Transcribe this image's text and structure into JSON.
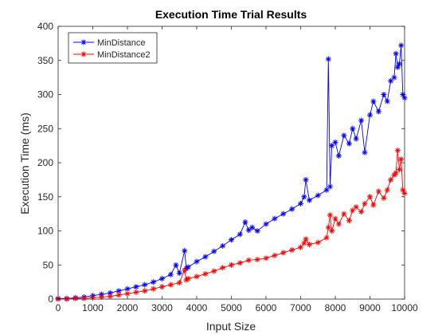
{
  "chart_data": {
    "type": "line",
    "title": "Execution Time Trial Results",
    "xlabel": "Input Size",
    "ylabel": "Execution Time (ms)",
    "xlim": [
      0,
      10000
    ],
    "ylim": [
      0,
      400
    ],
    "xticks": [
      0,
      1000,
      2000,
      3000,
      4000,
      5000,
      6000,
      7000,
      8000,
      9000,
      10000
    ],
    "yticks": [
      0,
      50,
      100,
      150,
      200,
      250,
      300,
      350,
      400
    ],
    "grid": false,
    "legend_position": "top-left",
    "series": [
      {
        "name": "MinDistance",
        "color": "#0000ff",
        "marker": "asterisk",
        "x": [
          0,
          250,
          500,
          750,
          1000,
          1250,
          1500,
          1750,
          2000,
          2250,
          2500,
          2750,
          3000,
          3250,
          3400,
          3500,
          3650,
          3700,
          3750,
          4000,
          4250,
          4500,
          4750,
          5000,
          5250,
          5400,
          5500,
          5600,
          5750,
          6000,
          6250,
          6500,
          6750,
          7000,
          7100,
          7150,
          7250,
          7500,
          7750,
          7800,
          7850,
          7900,
          8000,
          8100,
          8250,
          8400,
          8500,
          8600,
          8750,
          8850,
          9000,
          9100,
          9250,
          9400,
          9500,
          9600,
          9700,
          9750,
          9800,
          9850,
          9900,
          9950,
          10000
        ],
        "y": [
          1,
          1,
          2,
          3,
          5,
          7,
          9,
          12,
          15,
          18,
          21,
          25,
          30,
          36,
          50,
          38,
          71,
          45,
          47,
          55,
          62,
          70,
          78,
          87,
          95,
          113,
          101,
          105,
          100,
          110,
          118,
          125,
          132,
          140,
          150,
          175,
          145,
          152,
          160,
          352,
          165,
          225,
          230,
          210,
          240,
          228,
          250,
          235,
          262,
          215,
          270,
          290,
          275,
          300,
          290,
          320,
          325,
          360,
          340,
          345,
          372,
          300,
          295
        ]
      },
      {
        "name": "MinDistance2",
        "color": "#ff0000",
        "marker": "asterisk",
        "x": [
          0,
          250,
          500,
          750,
          1000,
          1250,
          1500,
          1750,
          2000,
          2250,
          2500,
          2750,
          3000,
          3250,
          3500,
          3650,
          3700,
          3750,
          4000,
          4250,
          4500,
          4750,
          5000,
          5250,
          5500,
          5750,
          6000,
          6250,
          6500,
          6750,
          7000,
          7100,
          7150,
          7250,
          7500,
          7750,
          7800,
          7850,
          7900,
          8000,
          8100,
          8250,
          8400,
          8500,
          8600,
          8750,
          8850,
          9000,
          9100,
          9250,
          9400,
          9500,
          9600,
          9700,
          9750,
          9800,
          9850,
          9900,
          9950,
          10000
        ],
        "y": [
          0,
          0,
          1,
          1,
          2,
          3,
          4,
          6,
          8,
          10,
          12,
          15,
          18,
          21,
          24,
          42,
          28,
          30,
          33,
          37,
          41,
          46,
          50,
          53,
          57,
          58,
          60,
          64,
          68,
          72,
          76,
          82,
          88,
          80,
          83,
          90,
          105,
          123,
          100,
          118,
          110,
          125,
          115,
          130,
          135,
          128,
          140,
          150,
          138,
          158,
          148,
          160,
          175,
          182,
          185,
          218,
          190,
          205,
          160,
          155
        ]
      }
    ]
  }
}
